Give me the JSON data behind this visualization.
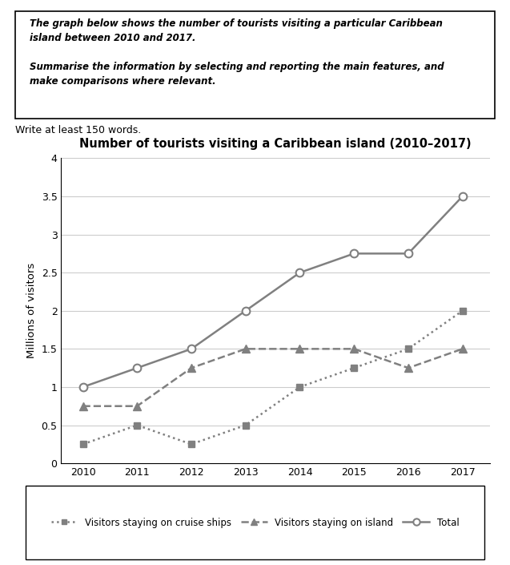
{
  "title": "Number of tourists visiting a Caribbean island (2010–2017)",
  "ylabel": "Millions of visitors",
  "years": [
    2010,
    2011,
    2012,
    2013,
    2014,
    2015,
    2016,
    2017
  ],
  "cruise_ships": [
    0.25,
    0.5,
    0.25,
    0.5,
    1.0,
    1.25,
    1.5,
    2.0
  ],
  "on_island": [
    0.75,
    0.75,
    1.25,
    1.5,
    1.5,
    1.5,
    1.25,
    1.5
  ],
  "total": [
    1.0,
    1.25,
    1.5,
    2.0,
    2.5,
    2.75,
    2.75,
    3.5
  ],
  "ylim": [
    0,
    4
  ],
  "yticks": [
    0,
    0.5,
    1.0,
    1.5,
    2.0,
    2.5,
    3.0,
    3.5,
    4.0
  ],
  "line_color": "#808080",
  "grid_color": "#cccccc",
  "box_line1": "The graph below shows the number of tourists visiting a particular Caribbean",
  "box_line2": "island between 2010 and 2017.",
  "box_line3": "Summarise the information by selecting and reporting the main features, and",
  "box_line4": "make comparisons where relevant.",
  "write_text": "Write at least 150 words.",
  "legend_cruise": "Visitors staying on cruise ships",
  "legend_island": "Visitors staying on island",
  "legend_total": "Total"
}
